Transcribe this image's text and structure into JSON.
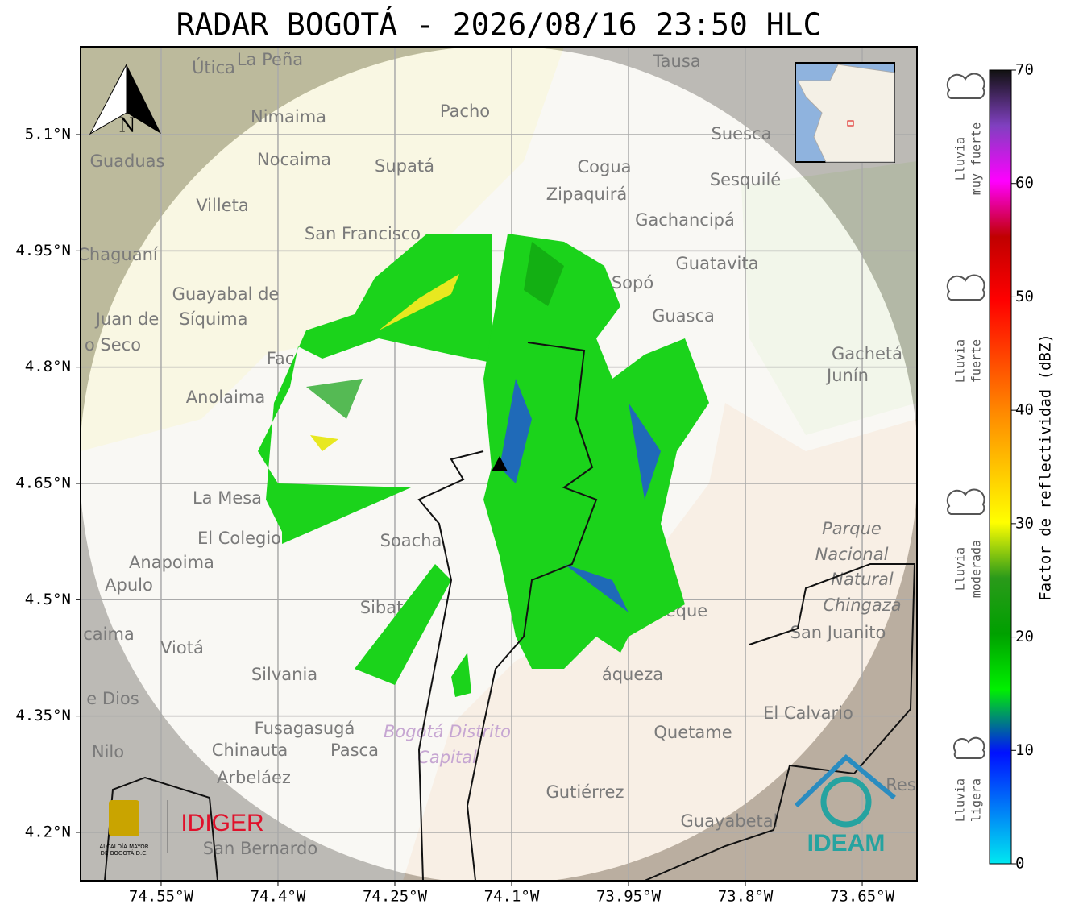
{
  "title": "RADAR BOGOTÁ - 2026/08/16 23:50 HLC",
  "map": {
    "xlim": [
      -74.6534,
      -73.5797
    ],
    "ylim": [
      4.1376,
      5.2133
    ],
    "xticks": [
      {
        "value": -74.55,
        "label": "74.55°W"
      },
      {
        "value": -74.4,
        "label": "74.4°W"
      },
      {
        "value": -74.25,
        "label": "74.25°W"
      },
      {
        "value": -74.1,
        "label": "74.1°W"
      },
      {
        "value": -73.95,
        "label": "73.95°W"
      },
      {
        "value": -73.8,
        "label": "73.8°W"
      },
      {
        "value": -73.65,
        "label": "73.65°W"
      }
    ],
    "yticks": [
      {
        "value": 5.1,
        "label": "5.1°N"
      },
      {
        "value": 4.95,
        "label": "4.95°N"
      },
      {
        "value": 4.8,
        "label": "4.8°N"
      },
      {
        "value": 4.65,
        "label": "4.65°N"
      },
      {
        "value": 4.5,
        "label": "4.5°N"
      },
      {
        "value": 4.35,
        "label": "4.35°N"
      },
      {
        "value": 4.2,
        "label": "4.2°N"
      }
    ],
    "grid": true,
    "north_label": "N",
    "places": [
      "Útica",
      "La Peña",
      "Tausa",
      "Pacho",
      "Nimaima",
      "Suesca",
      "Guaduas",
      "Nocaima",
      "Supatá",
      "Cogua",
      "Sesquilé",
      "Zipaquirá",
      "Villeta",
      "Gachancipá",
      "San Francisco",
      "Chaguaní",
      "Guatavita",
      "Guayabal de",
      "Síquima",
      "Guasca",
      "Juan de",
      "o Seco",
      "Fac",
      "Gachetá",
      "Junín",
      "Anolaima",
      "La Mesa",
      "El Colegio",
      "Soacha",
      "Anapoima",
      "Apulo",
      "Sibaté",
      "Parque",
      "Nacional",
      "Natural",
      "Chingaza",
      "San Juanito",
      "caima",
      "Viotá",
      "Silvania",
      "eque",
      "áqueza",
      "e Dios",
      "El Calvario",
      "Fusagasugá",
      "Quetame",
      "Bogotá Distrito",
      "Capital",
      "Nilo",
      "Chinauta",
      "Pasca",
      "Arbeláez",
      "Gutiérrez",
      "Guayabetal",
      "San Bernardo",
      "Res",
      "Sopó"
    ]
  },
  "colorbar": {
    "label": "Factor de reflectividad (dBZ)",
    "clim": [
      0,
      70
    ],
    "ticks": [
      0,
      10,
      20,
      30,
      40,
      50,
      60,
      70
    ]
  },
  "legend": [
    [
      "Lluvia",
      "muy fuerte"
    ],
    [
      "Lluvia",
      "fuerte"
    ],
    [
      "Lluvia",
      "moderada"
    ],
    [
      "Lluvia",
      "ligera"
    ]
  ],
  "logos": {
    "alcaldia": [
      "ALCALDÍA MAYOR",
      "DE BOGOTÁ D.C."
    ],
    "idiger": "IDIGER",
    "ideam": "IDEAM"
  }
}
